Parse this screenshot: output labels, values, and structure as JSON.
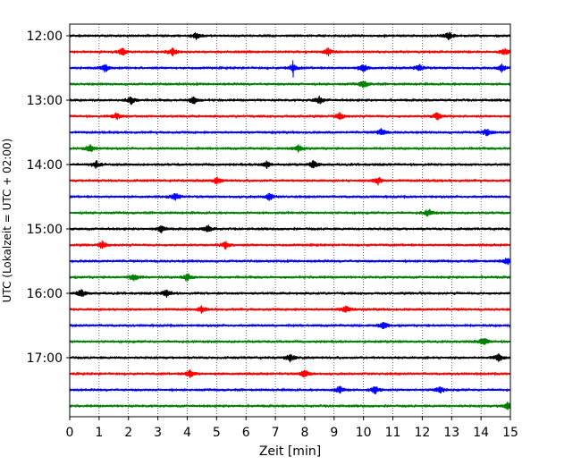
{
  "chart_data": {
    "type": "line",
    "title": "",
    "xlabel": "Zeit  [min]",
    "ylabel": "UTC (Lokalzeit = UTC + 02:00)",
    "xlim": [
      0,
      15
    ],
    "x_ticks": [
      "0",
      "1",
      "2",
      "3",
      "4",
      "5",
      "6",
      "7",
      "8",
      "9",
      "10",
      "11",
      "12",
      "13",
      "14",
      "15"
    ],
    "y_ticks": [
      "12:00",
      "13:00",
      "14:00",
      "15:00",
      "16:00",
      "17:00"
    ],
    "grid": "vertical-dotted",
    "trace_colors": [
      "#000000",
      "#ff0000",
      "#0000ff",
      "#008000"
    ],
    "traces": [
      {
        "start": "12:00",
        "events": [
          4.3,
          12.9
        ]
      },
      {
        "start": "12:15",
        "events": [
          1.8,
          3.5,
          8.8,
          14.8
        ]
      },
      {
        "start": "12:30",
        "events": [
          1.2,
          7.6,
          10.0,
          11.9,
          14.7
        ]
      },
      {
        "start": "12:45",
        "events": [
          10.0
        ]
      },
      {
        "start": "13:00",
        "events": [
          2.1,
          4.2,
          8.5
        ]
      },
      {
        "start": "13:15",
        "events": [
          1.6,
          9.2,
          12.5
        ]
      },
      {
        "start": "13:30",
        "events": [
          10.6,
          14.2
        ]
      },
      {
        "start": "13:45",
        "events": [
          0.7,
          7.8
        ]
      },
      {
        "start": "14:00",
        "events": [
          0.9,
          6.7,
          8.3
        ]
      },
      {
        "start": "14:15",
        "events": [
          5.0,
          10.5
        ]
      },
      {
        "start": "14:30",
        "events": [
          3.6,
          6.8
        ]
      },
      {
        "start": "14:45",
        "events": [
          12.2
        ]
      },
      {
        "start": "15:00",
        "events": [
          3.1,
          4.7
        ]
      },
      {
        "start": "15:15",
        "events": [
          1.1,
          5.3
        ]
      },
      {
        "start": "15:30",
        "events": [
          14.9
        ]
      },
      {
        "start": "15:45",
        "events": [
          2.2,
          4.0
        ]
      },
      {
        "start": "16:00",
        "events": [
          0.4,
          3.3
        ]
      },
      {
        "start": "16:15",
        "events": [
          4.5,
          9.4
        ]
      },
      {
        "start": "16:30",
        "events": [
          10.7
        ]
      },
      {
        "start": "16:45",
        "events": [
          14.1
        ]
      },
      {
        "start": "17:00",
        "events": [
          7.5,
          14.6
        ]
      },
      {
        "start": "17:15",
        "events": [
          4.1,
          8.0
        ]
      },
      {
        "start": "17:30",
        "events": [
          9.2,
          10.4,
          12.6
        ]
      },
      {
        "start": "17:45",
        "events": [
          14.9
        ]
      }
    ]
  }
}
